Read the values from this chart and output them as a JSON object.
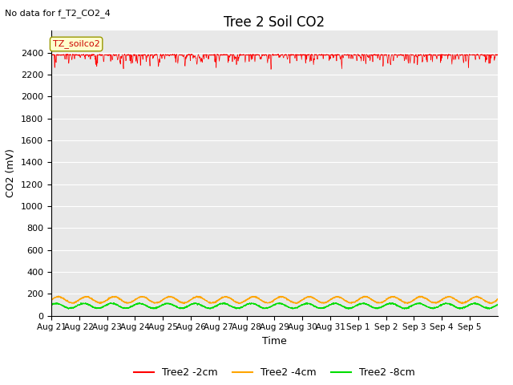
{
  "title": "Tree 2 Soil CO2",
  "no_data_text": "No data for f_T2_CO2_4",
  "xlabel": "Time",
  "ylabel": "CO2 (mV)",
  "ylim": [
    0,
    2600
  ],
  "yticks": [
    0,
    200,
    400,
    600,
    800,
    1000,
    1200,
    1400,
    1600,
    1800,
    2000,
    2200,
    2400
  ],
  "xtick_labels": [
    "Aug 21",
    "Aug 22",
    "Aug 23",
    "Aug 24",
    "Aug 25",
    "Aug 26",
    "Aug 27",
    "Aug 28",
    "Aug 29",
    "Aug 30",
    "Aug 31",
    "Sep 1",
    "Sep 2",
    "Sep 3",
    "Sep 4",
    "Sep 5"
  ],
  "legend_labels": [
    "Tree2 -2cm",
    "Tree2 -4cm",
    "Tree2 -8cm"
  ],
  "legend_colors": [
    "#ff0000",
    "#ffa500",
    "#00dd00"
  ],
  "annotation_label": "TZ_soilco2",
  "line_2cm_base": 2380,
  "line_4cm_base": 145,
  "line_8cm_base": 90,
  "n_points": 3000,
  "background_color": "#e8e8e8",
  "fig_background": "#ffffff",
  "title_fontsize": 12,
  "axis_fontsize": 9,
  "legend_fontsize": 9
}
